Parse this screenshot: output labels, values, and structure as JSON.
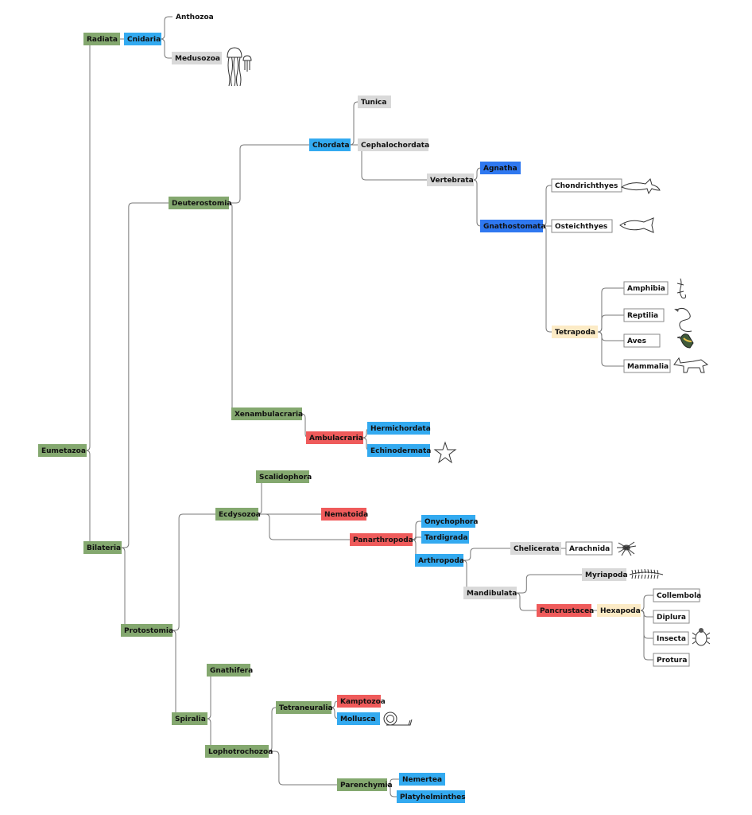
{
  "diagram": {
    "root": "eumetazoa",
    "palette": {
      "green": "#84a86f",
      "light_blue": "#33aaf0",
      "blue": "#2f78f0",
      "red": "#ef5b5b",
      "gray": "#d9d9d9",
      "white": "#ffffff",
      "cream": "#fcebc6"
    },
    "nodes": [
      {
        "id": "eumetazoa",
        "label": "Eumetazoa",
        "color": "green"
      },
      {
        "id": "radiata",
        "label": "Radiata",
        "color": "green",
        "parent": "eumetazoa"
      },
      {
        "id": "cnidaria",
        "label": "Cnidaria",
        "color": "light_blue",
        "parent": "radiata"
      },
      {
        "id": "anthozoa",
        "label": "Anthozoa",
        "color": "none",
        "parent": "cnidaria"
      },
      {
        "id": "medusozoa",
        "label": "Medusozoa",
        "color": "gray",
        "parent": "cnidaria",
        "icon": "jellyfish-icon"
      },
      {
        "id": "bilateria",
        "label": "Bilateria",
        "color": "green",
        "parent": "eumetazoa"
      },
      {
        "id": "deuterostomia",
        "label": "Deuterostomia",
        "color": "green",
        "parent": "bilateria"
      },
      {
        "id": "chordata",
        "label": "Chordata",
        "color": "light_blue",
        "parent": "deuterostomia"
      },
      {
        "id": "tunica",
        "label": "Tunica",
        "color": "gray",
        "parent": "chordata"
      },
      {
        "id": "cephalochordata",
        "label": "Cephalochordata",
        "color": "gray",
        "parent": "chordata"
      },
      {
        "id": "vertebrata",
        "label": "Vertebrata",
        "color": "gray",
        "parent": "chordata"
      },
      {
        "id": "agnatha",
        "label": "Agnatha",
        "color": "blue",
        "parent": "vertebrata"
      },
      {
        "id": "gnathostomata",
        "label": "Gnathostomata",
        "color": "blue",
        "parent": "vertebrata"
      },
      {
        "id": "chondrichthyes",
        "label": "Chondrichthyes",
        "color": "white",
        "parent": "gnathostomata",
        "icon": "shark-icon"
      },
      {
        "id": "osteichthyes",
        "label": "Osteichthyes",
        "color": "white",
        "parent": "gnathostomata",
        "icon": "fish-icon"
      },
      {
        "id": "tetrapoda",
        "label": "Tetrapoda",
        "color": "cream",
        "parent": "gnathostomata"
      },
      {
        "id": "amphibia",
        "label": "Amphibia",
        "color": "white",
        "parent": "tetrapoda",
        "icon": "salamander-icon"
      },
      {
        "id": "reptilia",
        "label": "Reptilia",
        "color": "white",
        "parent": "tetrapoda",
        "icon": "snake-icon"
      },
      {
        "id": "aves",
        "label": "Aves",
        "color": "white",
        "parent": "tetrapoda",
        "icon": "bird-icon"
      },
      {
        "id": "mammalia",
        "label": "Mammalia",
        "color": "white",
        "parent": "tetrapoda",
        "icon": "fox-icon"
      },
      {
        "id": "xenambulacraria",
        "label": "Xenambulacraria",
        "color": "green",
        "parent": "deuterostomia"
      },
      {
        "id": "ambulacraria",
        "label": "Ambulacraria",
        "color": "red",
        "parent": "xenambulacraria"
      },
      {
        "id": "hermichordata",
        "label": "Hermichordata",
        "color": "light_blue",
        "parent": "ambulacraria"
      },
      {
        "id": "echinodermata",
        "label": "Echinodermata",
        "color": "light_blue",
        "parent": "ambulacraria",
        "icon": "starfish-icon"
      },
      {
        "id": "protostomia",
        "label": "Protostomia",
        "color": "green",
        "parent": "bilateria"
      },
      {
        "id": "ecdysozoa",
        "label": "Ecdysozoa",
        "color": "green",
        "parent": "protostomia"
      },
      {
        "id": "scalidophora",
        "label": "Scalidophora",
        "color": "green",
        "parent": "ecdysozoa"
      },
      {
        "id": "nematoida",
        "label": "Nematoida",
        "color": "red",
        "parent": "ecdysozoa"
      },
      {
        "id": "panarthropoda",
        "label": "Panarthropoda",
        "color": "red",
        "parent": "ecdysozoa"
      },
      {
        "id": "onychophora",
        "label": "Onychophora",
        "color": "light_blue",
        "parent": "panarthropoda"
      },
      {
        "id": "tardigrada",
        "label": "Tardigrada",
        "color": "light_blue",
        "parent": "panarthropoda"
      },
      {
        "id": "arthropoda",
        "label": "Arthropoda",
        "color": "light_blue",
        "parent": "panarthropoda"
      },
      {
        "id": "chelicerata",
        "label": "Chelicerata",
        "color": "gray",
        "parent": "arthropoda"
      },
      {
        "id": "arachnida",
        "label": "Arachnida",
        "color": "white",
        "parent": "chelicerata",
        "icon": "spider-icon"
      },
      {
        "id": "mandibulata",
        "label": "Mandibulata",
        "color": "gray",
        "parent": "arthropoda"
      },
      {
        "id": "myriapoda",
        "label": "Myriapoda",
        "color": "gray",
        "parent": "mandibulata",
        "icon": "centipede-icon"
      },
      {
        "id": "pancrustacea",
        "label": "Pancrustacea",
        "color": "red",
        "parent": "mandibulata"
      },
      {
        "id": "hexapoda",
        "label": "Hexapoda",
        "color": "cream",
        "parent": "pancrustacea"
      },
      {
        "id": "collembola",
        "label": "Collembola",
        "color": "white",
        "parent": "hexapoda"
      },
      {
        "id": "diplura",
        "label": "Diplura",
        "color": "white",
        "parent": "hexapoda"
      },
      {
        "id": "insecta",
        "label": "Insecta",
        "color": "white",
        "parent": "hexapoda",
        "icon": "beetle-icon"
      },
      {
        "id": "protura",
        "label": "Protura",
        "color": "white",
        "parent": "hexapoda"
      },
      {
        "id": "spiralia",
        "label": "Spiralia",
        "color": "green",
        "parent": "protostomia"
      },
      {
        "id": "gnathifera",
        "label": "Gnathifera",
        "color": "green",
        "parent": "spiralia"
      },
      {
        "id": "lophotrochozoa",
        "label": "Lophotrochozoa",
        "color": "green",
        "parent": "spiralia"
      },
      {
        "id": "tetraneuralia",
        "label": "Tetraneuralia",
        "color": "green",
        "parent": "lophotrochozoa"
      },
      {
        "id": "kamptozoa",
        "label": "Kamptozoa",
        "color": "red",
        "parent": "tetraneuralia"
      },
      {
        "id": "mollusca",
        "label": "Mollusca",
        "color": "light_blue",
        "parent": "tetraneuralia",
        "icon": "snail-icon"
      },
      {
        "id": "parenchymia",
        "label": "Parenchymia",
        "color": "green",
        "parent": "lophotrochozoa"
      },
      {
        "id": "nemertea",
        "label": "Nemertea",
        "color": "light_blue",
        "parent": "parenchymia"
      },
      {
        "id": "platyhelminthes",
        "label": "Platyhelminthes",
        "color": "light_blue",
        "parent": "parenchymia"
      }
    ]
  }
}
